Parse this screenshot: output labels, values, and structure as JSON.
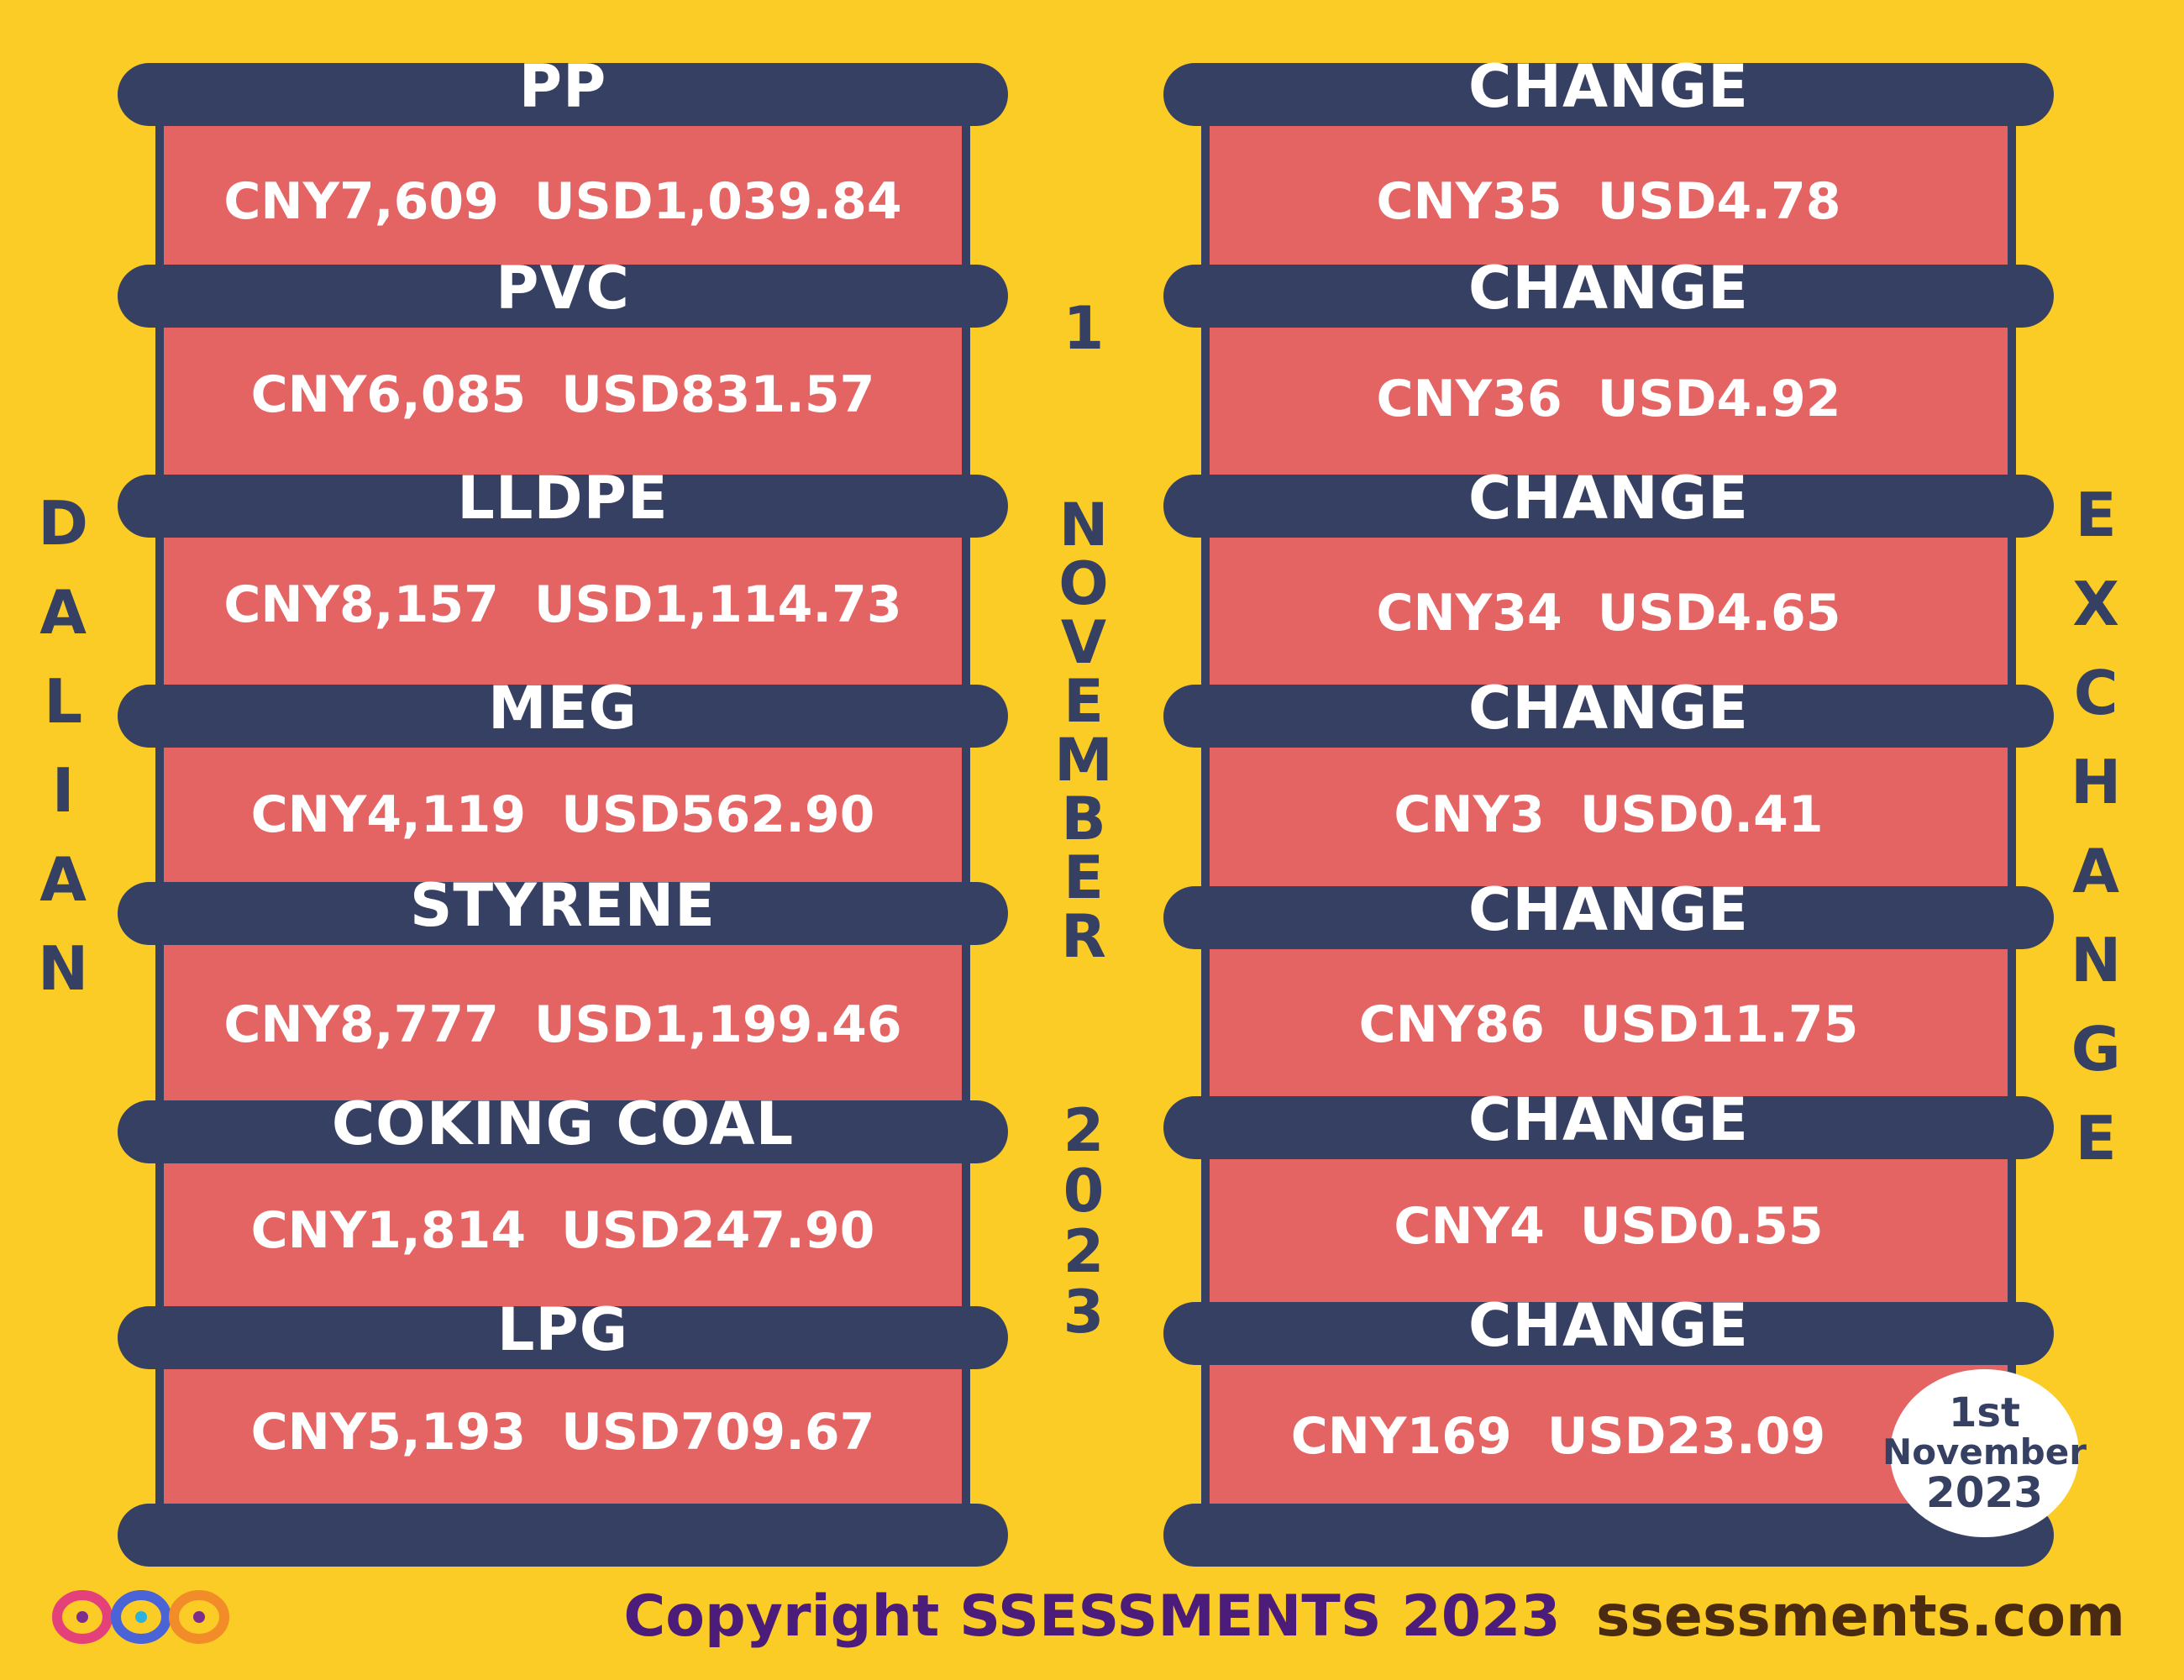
{
  "left_column": [
    {
      "label": "PP",
      "cny": "CNY7,609",
      "usd": "USD1,039.84"
    },
    {
      "label": "PVC",
      "cny": "CNY6,085",
      "usd": "USD831.57"
    },
    {
      "label": "LLDPE",
      "cny": "CNY8,157",
      "usd": "USD1,114.73"
    },
    {
      "label": "MEG",
      "cny": "CNY4,119",
      "usd": "USD562.90"
    },
    {
      "label": "STYRENE",
      "cny": "CNY8,777",
      "usd": "USD1,199.46"
    },
    {
      "label": "COKING COAL",
      "cny": "CNY1,814",
      "usd": "USD247.90"
    },
    {
      "label": "LPG",
      "cny": "CNY5,193",
      "usd": "USD709.67"
    }
  ],
  "right_column": [
    {
      "label": "CHANGE",
      "cny": "CNY35",
      "usd": "USD4.78"
    },
    {
      "label": "CHANGE",
      "cny": "CNY36",
      "usd": "USD4.92"
    },
    {
      "label": "CHANGE",
      "cny": "CNY34",
      "usd": "USD4.65"
    },
    {
      "label": "CHANGE",
      "cny": "CNY3",
      "usd": "USD0.41"
    },
    {
      "label": "CHANGE",
      "cny": "CNY86",
      "usd": "USD11.75"
    },
    {
      "label": "CHANGE",
      "cny": "CNY4",
      "usd": "USD0.55"
    },
    {
      "label": "CHANGE",
      "cny": "CNY169",
      "usd": "USD23.09"
    }
  ],
  "side_left": [
    "D",
    "A",
    "L",
    "I",
    "A",
    "N"
  ],
  "side_right": [
    "E",
    "X",
    "C",
    "H",
    "A",
    "N",
    "G",
    "E"
  ],
  "middle": {
    "day": "1",
    "month": [
      "N",
      "O",
      "V",
      "E",
      "M",
      "B",
      "E",
      "R"
    ],
    "year": [
      "2",
      "0",
      "2",
      "3"
    ]
  },
  "badge": {
    "line1": "1st",
    "line2": "November",
    "line3": "2023"
  },
  "footer": {
    "copyright": "Copyright SSESSMENTS 2023",
    "site": "ssessments.com"
  },
  "colors": {
    "background": "#FBCB26",
    "bar": "#364063",
    "cell": "#E46463",
    "text": "#FFFFFF"
  },
  "icons": {
    "logo": "infinity-rings-logo"
  }
}
